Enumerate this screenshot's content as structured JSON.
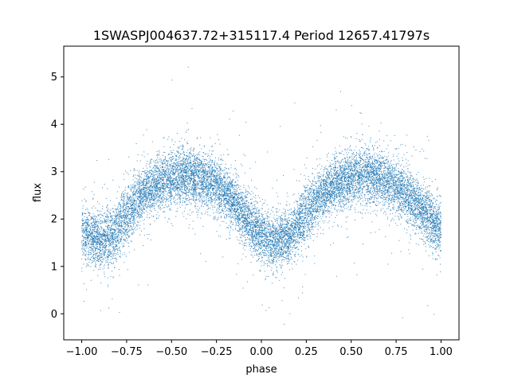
{
  "chart_data": {
    "type": "scatter",
    "title": "1SWASPJ004637.72+315117.4 Period 12657.41797s",
    "xlabel": "phase",
    "ylabel": "flux",
    "xlim": [
      -1.1,
      1.1
    ],
    "ylim": [
      -0.55,
      5.65
    ],
    "x_ticks": [
      -1.0,
      -0.75,
      -0.5,
      -0.25,
      0.0,
      0.25,
      0.5,
      0.75,
      1.0
    ],
    "x_tick_labels": [
      "−1.00",
      "−0.75",
      "−0.50",
      "−0.25",
      "0.00",
      "0.25",
      "0.50",
      "0.75",
      "1.00"
    ],
    "y_ticks": [
      0,
      1,
      2,
      3,
      4,
      5
    ],
    "y_tick_labels": [
      "0",
      "1",
      "2",
      "3",
      "4",
      "5"
    ],
    "grid": false,
    "marker_color": "#1f77b4",
    "series": [
      {
        "name": "",
        "x": [
          -1.0,
          -0.95,
          -0.9,
          -0.85,
          -0.8,
          -0.75,
          -0.7,
          -0.65,
          -0.6,
          -0.55,
          -0.5,
          -0.45,
          -0.4,
          -0.35,
          -0.3,
          -0.25,
          -0.2,
          -0.15,
          -0.1,
          -0.05,
          0.0,
          0.05,
          0.1,
          0.15,
          0.2,
          0.25,
          0.3,
          0.35,
          0.4,
          0.45,
          0.5,
          0.55,
          0.6,
          0.65,
          0.7,
          0.75,
          0.8,
          0.85,
          0.9,
          0.95,
          1.0
        ],
        "y": [
          1.75,
          1.6,
          1.55,
          1.6,
          1.8,
          2.05,
          2.35,
          2.55,
          2.7,
          2.8,
          2.85,
          2.9,
          2.9,
          2.85,
          2.8,
          2.7,
          2.55,
          2.35,
          2.1,
          1.85,
          1.65,
          1.55,
          1.55,
          1.65,
          1.85,
          2.1,
          2.35,
          2.55,
          2.7,
          2.8,
          2.85,
          2.9,
          2.9,
          2.85,
          2.8,
          2.7,
          2.55,
          2.35,
          2.15,
          1.95,
          1.75
        ]
      }
    ]
  }
}
